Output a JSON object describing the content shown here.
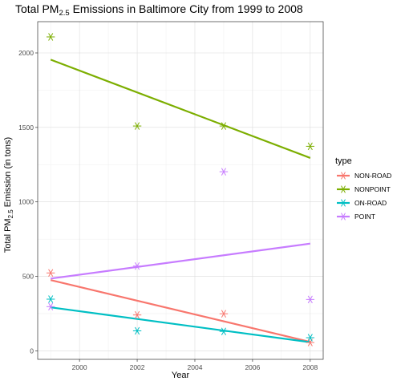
{
  "chart_data": {
    "type": "scatter",
    "title": {
      "prefix": "Total PM",
      "sub": "2.5",
      "suffix": " Emissions in Baltimore City from 1999 to 2008"
    },
    "xlabel": "Year",
    "ylabel": {
      "prefix": "Total PM",
      "sub": "2.5",
      "suffix": " Emission (in tons)"
    },
    "xlim": [
      1998.55,
      2008.45
    ],
    "ylim": [
      -57,
      2210
    ],
    "x_ticks": [
      2000,
      2002,
      2004,
      2006,
      2008
    ],
    "x_tick_labels": [
      "2000",
      "2002",
      "2004",
      "2006",
      "2008"
    ],
    "y_ticks": [
      0,
      500,
      1000,
      1500,
      2000
    ],
    "y_tick_labels": [
      "0",
      "500",
      "1000",
      "1500",
      "2000"
    ],
    "grid": true,
    "legend": {
      "title": "type",
      "placement": "right"
    },
    "series": [
      {
        "name": "NON-ROAD",
        "color": "#F8766D",
        "points": [
          [
            1999,
            522.94
          ],
          [
            2002,
            240.85
          ],
          [
            2005,
            248.93
          ],
          [
            2008,
            55.82
          ]
        ],
        "fit": [
          [
            1999,
            475
          ],
          [
            2008,
            60
          ]
        ]
      },
      {
        "name": "NONPOINT",
        "color": "#7CAE00",
        "points": [
          [
            1999,
            2107.63
          ],
          [
            2002,
            1509.5
          ],
          [
            2005,
            1509.5
          ],
          [
            2008,
            1373.21
          ]
        ],
        "fit": [
          [
            1999,
            1955
          ],
          [
            2008,
            1295
          ]
        ]
      },
      {
        "name": "ON-ROAD",
        "color": "#00BFC4",
        "points": [
          [
            1999,
            346.82
          ],
          [
            2002,
            134.31
          ],
          [
            2005,
            130.43
          ],
          [
            2008,
            88.28
          ]
        ],
        "fit": [
          [
            1999,
            292
          ],
          [
            2008,
            58
          ]
        ]
      },
      {
        "name": "POINT",
        "color": "#C77CFF",
        "points": [
          [
            1999,
            296.8
          ],
          [
            2002,
            569.26
          ],
          [
            2005,
            1202.49
          ],
          [
            2008,
            344.98
          ]
        ],
        "fit": [
          [
            1999,
            485
          ],
          [
            2008,
            720
          ]
        ]
      }
    ]
  }
}
